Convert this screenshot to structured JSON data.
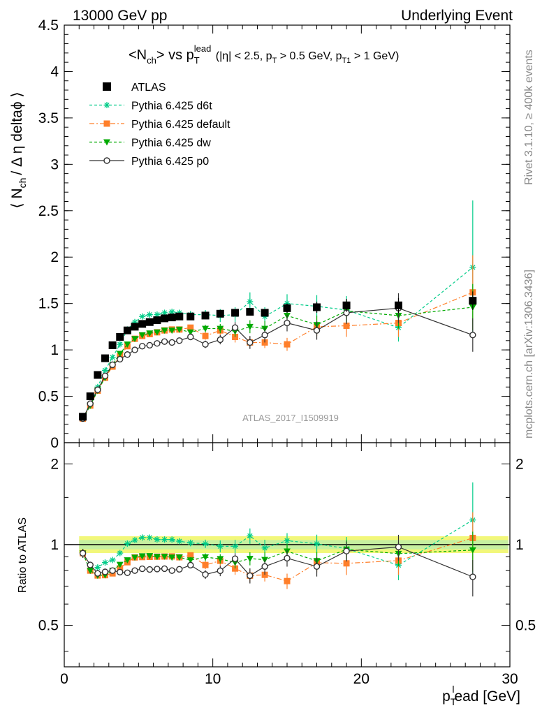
{
  "header": {
    "left": "13000 GeV pp",
    "right": "Underlying Event"
  },
  "plot_title": {
    "main_pre": "<N",
    "main_sub": "ch",
    "main_mid": "> vs p",
    "main_sub2": "T",
    "main_sup": "lead",
    "cond_1": " (|η| < 2.5, p",
    "cond_sub_1": "T",
    "cond_2": " > 0.5 GeV, p",
    "cond_sub_2": "T1",
    "cond_3": " > 1 GeV)"
  },
  "axes": {
    "ylabel_pre": "⟨ N",
    "ylabel_sub": "ch",
    "ylabel_post": "/ Δ η deltaϕ ⟩",
    "ratio_ylabel": "Ratio to ATLAS",
    "xlabel_p": "p",
    "xlabel_sub": "T",
    "xlabel_sup": "l",
    "xlabel_rest": "ead [GeV]"
  },
  "side_text": {
    "rivet": "Rivet 3.1.10, ≥ 400k events",
    "mcplots": "mcplots.cern.ch [arXiv:1306.3436]"
  },
  "watermark": "ATLAS_2017_I1509919",
  "colors": {
    "data": "#000000",
    "d6t": "#00cc88",
    "default": "#ff7f2a",
    "dw": "#00aa00",
    "p0": "#333333",
    "band_outer": "#f2f77a",
    "band_inner": "#c6f0a0"
  },
  "chart_data": {
    "type": "scatter",
    "xlim": [
      0,
      30
    ],
    "main_ylim": [
      0,
      4.5
    ],
    "main_yticks": [
      "0",
      "0.5",
      "1",
      "1.5",
      "2",
      "2.5",
      "3",
      "3.5",
      "4",
      "4.5"
    ],
    "ratio_ylim": [
      0.35,
      2.4
    ],
    "ratio_yscale": "log",
    "ratio_yticks": [
      "0.5",
      "1",
      "2"
    ],
    "xticks": [
      "0",
      "10",
      "20",
      "30"
    ],
    "x": [
      1.25,
      1.75,
      2.25,
      2.75,
      3.25,
      3.75,
      4.25,
      4.75,
      5.25,
      5.75,
      6.25,
      6.75,
      7.25,
      7.75,
      8.5,
      9.5,
      10.5,
      11.5,
      12.5,
      13.5,
      15.0,
      17.0,
      19.0,
      22.5,
      27.5
    ],
    "legend": [
      "ATLAS",
      "Pythia 6.425 d6t",
      "Pythia 6.425 default",
      "Pythia 6.425 dw",
      "Pythia 6.425 p0"
    ],
    "series": [
      {
        "name": "ATLAS",
        "marker": "square",
        "values": [
          0.28,
          0.5,
          0.73,
          0.91,
          1.05,
          1.14,
          1.21,
          1.25,
          1.28,
          1.3,
          1.32,
          1.34,
          1.35,
          1.36,
          1.36,
          1.37,
          1.39,
          1.4,
          1.41,
          1.4,
          1.45,
          1.46,
          1.48,
          1.48,
          1.53
        ],
        "errors": [
          0.02,
          0.02,
          0.02,
          0.02,
          0.02,
          0.02,
          0.02,
          0.02,
          0.02,
          0.02,
          0.02,
          0.02,
          0.02,
          0.02,
          0.03,
          0.03,
          0.03,
          0.03,
          0.04,
          0.04,
          0.05,
          0.06,
          0.07,
          0.08,
          0.1
        ]
      },
      {
        "name": "Pythia 6.425 d6t",
        "marker": "star",
        "values": [
          0.26,
          0.4,
          0.6,
          0.78,
          0.92,
          1.06,
          1.22,
          1.3,
          1.36,
          1.38,
          1.38,
          1.4,
          1.41,
          1.4,
          1.38,
          1.38,
          1.37,
          1.38,
          1.52,
          1.36,
          1.5,
          1.47,
          1.43,
          1.24,
          1.89
        ],
        "errors": [
          0.01,
          0.01,
          0.01,
          0.01,
          0.01,
          0.02,
          0.02,
          0.02,
          0.02,
          0.02,
          0.02,
          0.03,
          0.03,
          0.03,
          0.04,
          0.05,
          0.07,
          0.08,
          0.1,
          0.1,
          0.1,
          0.12,
          0.15,
          0.15,
          0.72
        ]
      },
      {
        "name": "Pythia 6.425 default",
        "marker": "square",
        "values": [
          0.26,
          0.4,
          0.56,
          0.7,
          0.82,
          0.93,
          1.04,
          1.12,
          1.15,
          1.17,
          1.19,
          1.21,
          1.22,
          1.22,
          1.24,
          1.15,
          1.21,
          1.14,
          1.08,
          1.08,
          1.06,
          1.25,
          1.26,
          1.29,
          1.62
        ],
        "errors": [
          0.01,
          0.01,
          0.01,
          0.01,
          0.01,
          0.01,
          0.02,
          0.02,
          0.02,
          0.02,
          0.02,
          0.02,
          0.03,
          0.03,
          0.03,
          0.04,
          0.05,
          0.06,
          0.06,
          0.06,
          0.07,
          0.1,
          0.12,
          0.15,
          0.4
        ]
      },
      {
        "name": "Pythia 6.425 dw",
        "marker": "triangle",
        "values": [
          0.26,
          0.4,
          0.56,
          0.7,
          0.84,
          0.96,
          1.06,
          1.12,
          1.16,
          1.18,
          1.19,
          1.21,
          1.21,
          1.22,
          1.19,
          1.23,
          1.23,
          1.2,
          1.25,
          1.23,
          1.37,
          1.27,
          1.42,
          1.37,
          1.46
        ],
        "errors": [
          0.01,
          0.01,
          0.01,
          0.01,
          0.01,
          0.01,
          0.02,
          0.02,
          0.02,
          0.02,
          0.02,
          0.02,
          0.03,
          0.03,
          0.03,
          0.04,
          0.05,
          0.06,
          0.07,
          0.08,
          0.09,
          0.1,
          0.12,
          0.14,
          0.25
        ]
      },
      {
        "name": "Pythia 6.425 p0",
        "marker": "circle",
        "values": [
          0.26,
          0.42,
          0.57,
          0.72,
          0.84,
          0.9,
          0.95,
          1.0,
          1.04,
          1.05,
          1.07,
          1.09,
          1.08,
          1.1,
          1.14,
          1.06,
          1.11,
          1.24,
          1.08,
          1.16,
          1.29,
          1.21,
          1.4,
          1.45,
          1.16
        ],
        "errors": [
          0.01,
          0.01,
          0.01,
          0.01,
          0.01,
          0.01,
          0.02,
          0.02,
          0.02,
          0.02,
          0.02,
          0.02,
          0.03,
          0.03,
          0.03,
          0.04,
          0.05,
          0.06,
          0.07,
          0.08,
          0.09,
          0.1,
          0.12,
          0.16,
          0.18
        ]
      }
    ]
  }
}
